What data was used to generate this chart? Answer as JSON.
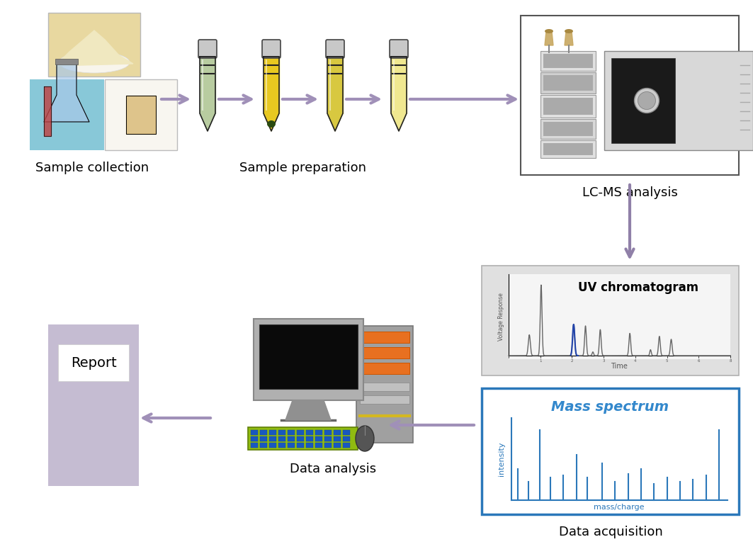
{
  "bg_color": "#ffffff",
  "arrow_color": "#a090b8",
  "arrow_color_down": "#9080a8",
  "label_sample_collection": "Sample collection",
  "label_sample_preparation": "Sample preparation",
  "label_lcms": "LC-MS analysis",
  "label_data_acquisition": "Data acquisition",
  "label_data_analysis": "Data analysis",
  "label_report": "Report",
  "label_uv": "UV chromatogram",
  "label_mass": "Mass spectrum",
  "label_mass_x": "mass/charge",
  "label_mass_y": "intensity",
  "label_uv_y": "Voltage Response",
  "label_uv_x": "Time",
  "report_color": "#c5bcd2",
  "mass_border_color": "#2b78ba",
  "mass_title_color": "#3388cc",
  "mass_axis_color": "#2b78ba",
  "uv_bg": "#e0e0e0",
  "figsize": [
    10.63,
    7.82
  ],
  "dpi": 100
}
